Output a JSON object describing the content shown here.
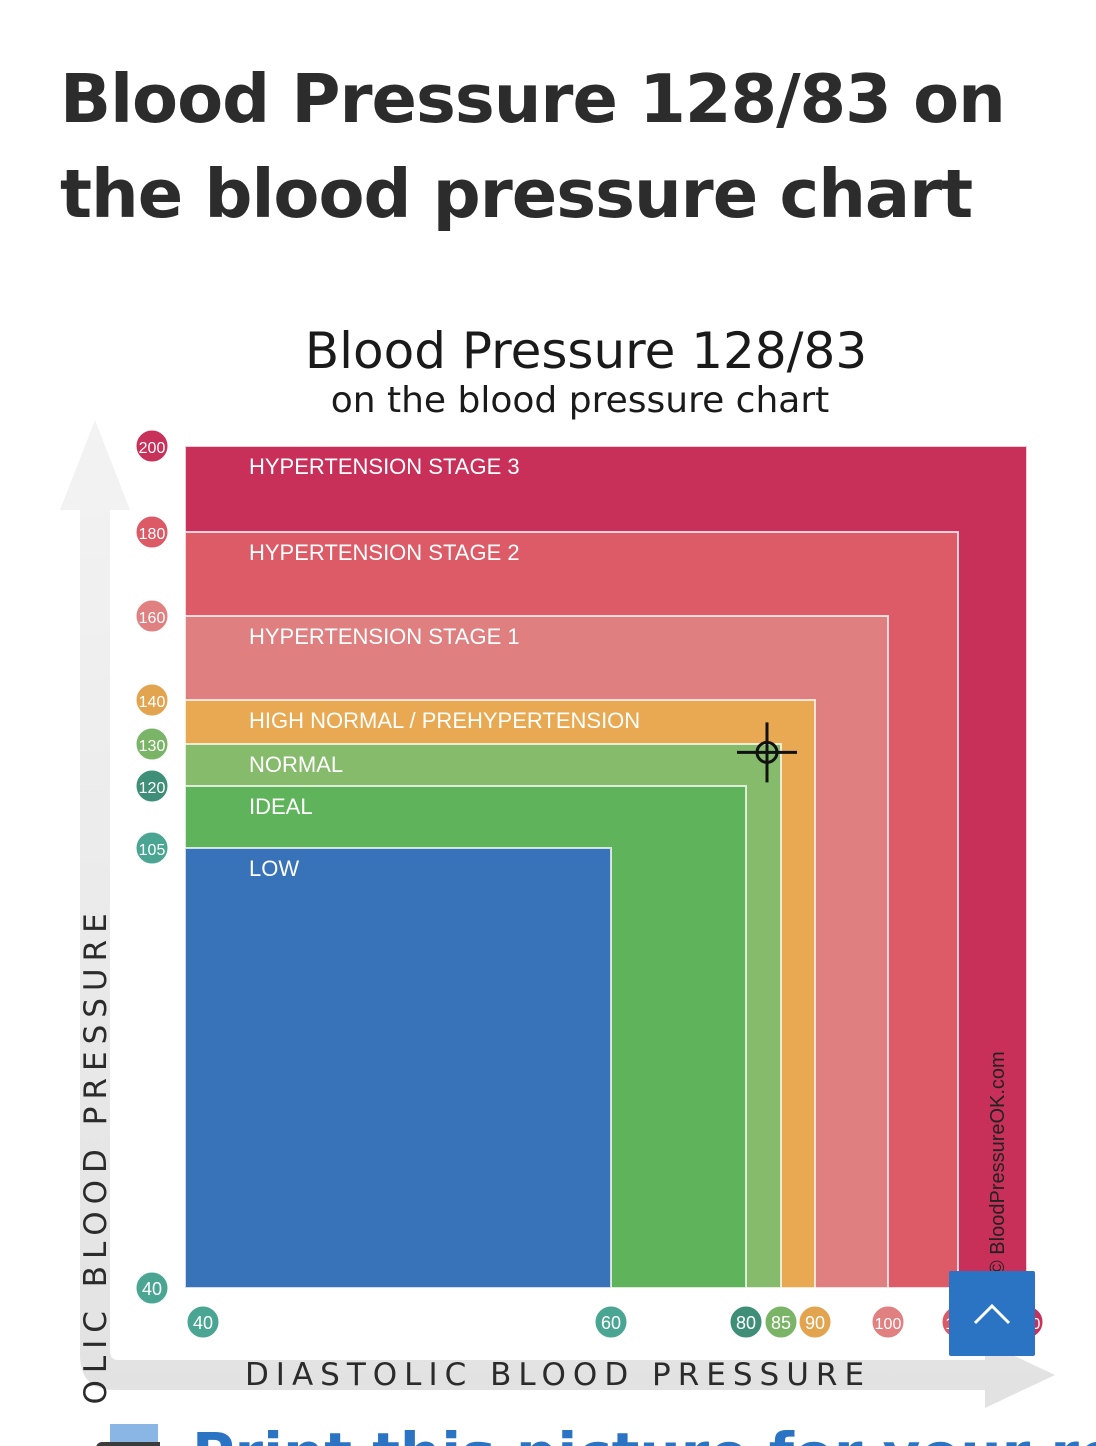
{
  "page": {
    "heading": "Blood Pressure 128/83 on the blood pressure chart"
  },
  "chart_data": {
    "type": "area",
    "title": "Blood Pressure 128/83",
    "subtitle": "on the blood pressure chart",
    "xlabel": "DIASTOLIC BLOOD PRESSURE",
    "ylabel": "SYSTOLIC BLOOD PRESSURE",
    "watermark": "© BloodPressureOK.com",
    "x_ticks": [
      {
        "label": "40",
        "value": 40,
        "color": "#4aa593"
      },
      {
        "label": "60",
        "value": 60,
        "color": "#4aa593"
      },
      {
        "label": "80",
        "value": 80,
        "color": "#3f8f78"
      },
      {
        "label": "85",
        "value": 85,
        "color": "#7ab467"
      },
      {
        "label": "90",
        "value": 90,
        "color": "#e3a44f"
      },
      {
        "label": "100",
        "value": 100,
        "color": "#e18080"
      },
      {
        "label": "110",
        "value": 110,
        "color": "#dc5a66"
      },
      {
        "label": "120",
        "value": 120,
        "color": "#c8315a"
      }
    ],
    "y_ticks": [
      {
        "label": "200",
        "value": 200,
        "color": "#c8315a"
      },
      {
        "label": "180",
        "value": 180,
        "color": "#dc5a66"
      },
      {
        "label": "160",
        "value": 160,
        "color": "#e18080"
      },
      {
        "label": "140",
        "value": 140,
        "color": "#e3a44f"
      },
      {
        "label": "130",
        "value": 130,
        "color": "#7ab467"
      },
      {
        "label": "120",
        "value": 120,
        "color": "#3f8f78"
      },
      {
        "label": "105",
        "value": 105,
        "color": "#4aa593"
      },
      {
        "label": "40",
        "value": 40,
        "color": "#4aa593"
      }
    ],
    "zones": [
      {
        "name": "HYPERTENSION STAGE 3",
        "max_diastolic": 120,
        "max_systolic": 200,
        "color": "#c8305a"
      },
      {
        "name": "HYPERTENSION STAGE 2",
        "max_diastolic": 110,
        "max_systolic": 180,
        "color": "#dc5b67"
      },
      {
        "name": "HYPERTENSION STAGE 1",
        "max_diastolic": 100,
        "max_systolic": 160,
        "color": "#e07f80"
      },
      {
        "name": "HIGH NORMAL / PREHYPERTENSION",
        "max_diastolic": 90,
        "max_systolic": 140,
        "color": "#e8a952"
      },
      {
        "name": "NORMAL",
        "max_diastolic": 85,
        "max_systolic": 130,
        "color": "#86bb6c"
      },
      {
        "name": "IDEAL",
        "max_diastolic": 80,
        "max_systolic": 120,
        "color": "#5fb45b"
      },
      {
        "name": "LOW",
        "max_diastolic": 60,
        "max_systolic": 105,
        "color": "#3872b8"
      }
    ],
    "point": {
      "systolic": 128,
      "diastolic": 83
    },
    "xlim": [
      40,
      120
    ],
    "ylim": [
      40,
      200
    ]
  },
  "ui": {
    "scroll_top_icon": "chevron-up-icon",
    "print_link": "Print this picture for your records"
  }
}
